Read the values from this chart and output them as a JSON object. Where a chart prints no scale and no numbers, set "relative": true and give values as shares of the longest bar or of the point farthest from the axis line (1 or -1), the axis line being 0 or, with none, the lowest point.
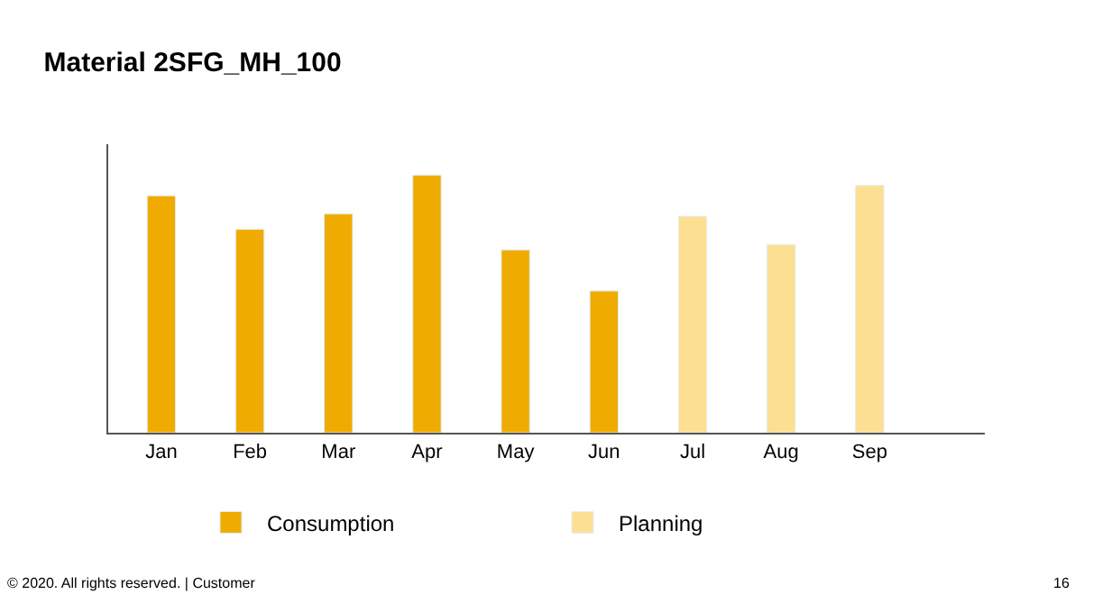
{
  "chart_data": {
    "type": "bar",
    "title": "Material 2SFG_MH_100",
    "relative": true,
    "legend": "bottom",
    "categories": [
      "Jan",
      "Feb",
      "Mar",
      "Apr",
      "May",
      "Jun",
      "Jul",
      "Aug",
      "Sep"
    ],
    "series": [
      {
        "name": "Consumption",
        "color": "#f0ab00",
        "values": [
          0.92,
          0.79,
          0.85,
          1,
          0.71,
          0.55,
          null,
          null,
          null
        ]
      },
      {
        "name": "Planning",
        "color": "#fddf92",
        "values": [
          null,
          null,
          null,
          null,
          null,
          null,
          0.84,
          0.73,
          0.96
        ]
      }
    ],
    "annotations": [
      "© 2020. All rights reserved. | Customer",
      "16"
    ]
  }
}
